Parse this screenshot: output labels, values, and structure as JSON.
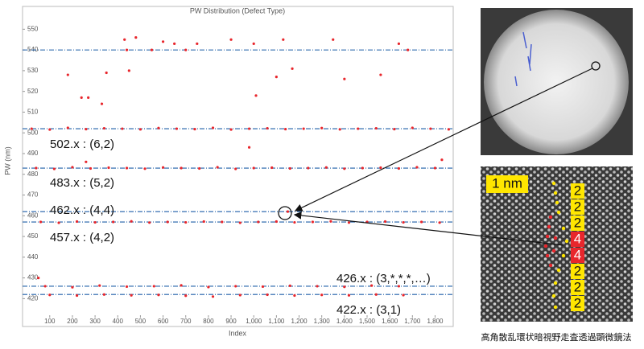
{
  "chart_data": {
    "type": "scatter",
    "title": "PW Distribution (Defect Type)",
    "x_label": "Index",
    "y_label": "PW (nm)",
    "xlim": [
      -20,
      1880
    ],
    "ylim": [
      412,
      561
    ],
    "xticks": [
      100,
      200,
      300,
      400,
      500,
      600,
      700,
      800,
      900,
      {
        "value": 1000,
        "label": "1,000"
      },
      {
        "value": 1100,
        "label": "1,100"
      },
      {
        "value": 1200,
        "label": "1,200"
      },
      {
        "value": 1300,
        "label": "1,300"
      },
      {
        "value": 1400,
        "label": "1,400"
      },
      {
        "value": 1500,
        "label": "1,500"
      },
      {
        "value": 1600,
        "label": "1,600"
      },
      {
        "value": 1700,
        "label": "1,700"
      },
      {
        "value": 1800,
        "label": "1,800"
      }
    ],
    "yticks": [
      420,
      430,
      440,
      450,
      460,
      470,
      480,
      490,
      500,
      510,
      520,
      530,
      540,
      550
    ],
    "hlines": [
      540,
      502,
      483,
      462,
      457,
      426,
      422
    ],
    "hline_color": "#1f5fa8",
    "x": [
      20,
      100,
      180,
      260,
      340,
      420,
      500,
      580,
      660,
      740,
      820,
      900,
      980,
      1060,
      1140,
      1220,
      1300,
      1380,
      1460,
      1540,
      1620,
      1700,
      1780,
      1860,
      40,
      120,
      200,
      280,
      360,
      440,
      520,
      600,
      680,
      760,
      840,
      920,
      1000,
      1080,
      1160,
      1240,
      1320,
      1400,
      1480,
      1560,
      1640,
      1720,
      1800,
      60,
      140,
      220,
      300,
      380,
      460,
      540,
      620,
      700,
      780,
      860,
      940,
      1020,
      1100,
      1180,
      1260,
      1340,
      1420,
      1500,
      1580,
      1660,
      1740,
      1820,
      80,
      200,
      320,
      440,
      560,
      680,
      800,
      920,
      1040,
      1160,
      1280,
      1400,
      1520,
      1640,
      100,
      220,
      340,
      460,
      580,
      700,
      820,
      940,
      1060,
      1180,
      1300,
      1420,
      1540,
      1660,
      180,
      240,
      270,
      330,
      350,
      430,
      480,
      440,
      450,
      550,
      600,
      650,
      700,
      750,
      900,
      1000,
      1010,
      1100,
      1130,
      1170,
      1400,
      1350,
      1560,
      1640,
      1680,
      50,
      1830,
      980,
      260,
      1150
    ],
    "series": [
      {
        "color": "#e8262c",
        "values": [
          502,
          501.6,
          502.4,
          501.8,
          502.2,
          502,
          501.7,
          502.3,
          502,
          501.8,
          502.4,
          501.6,
          502,
          502.2,
          501.8,
          502,
          502.3,
          501.7,
          502,
          502.2,
          501.8,
          502.4,
          502,
          501.7,
          483,
          482.6,
          483.4,
          482.8,
          483.2,
          483,
          482.7,
          483.3,
          483,
          482.8,
          483.4,
          482.6,
          483,
          483.2,
          482.8,
          483,
          483.3,
          482.7,
          483,
          483.2,
          482.8,
          483.4,
          483,
          457,
          456.6,
          457.2,
          456.8,
          457,
          457.3,
          456.7,
          457,
          456.8,
          457.2,
          457,
          456.6,
          457,
          457.2,
          456.8,
          457,
          457.3,
          456.7,
          457,
          457.2,
          456.8,
          457,
          456.7,
          426,
          425.5,
          426.3,
          425.8,
          426,
          426.4,
          425.6,
          426,
          425.8,
          426.2,
          426,
          425.7,
          426.3,
          426,
          421.8,
          421.5,
          422,
          421.6,
          421.8,
          421.4,
          421,
          421.7,
          421.9,
          421.5,
          421.8,
          421.6,
          422,
          421.7,
          528,
          517,
          517,
          514,
          529,
          545,
          546,
          540,
          530,
          540,
          544,
          543,
          540,
          543,
          545,
          543,
          518,
          527,
          545,
          531,
          526,
          545,
          528,
          543,
          540,
          430,
          487,
          493,
          486,
          462
        ]
      }
    ],
    "annotations": [
      "502.x : (6,2)",
      "483.x : (5,2)",
      "462.x : (4,4)",
      "457.x : (4,2)",
      "426.x : (3,*,*,*,…)",
      "422.x : (3,1)"
    ]
  },
  "figure": {
    "scale_label": "1 nm",
    "column_labels": [
      "2",
      "2",
      "2",
      "4",
      "4",
      "2",
      "2",
      "2"
    ],
    "caption": "高角散乱環状暗視野走査透過顕微鏡法"
  }
}
